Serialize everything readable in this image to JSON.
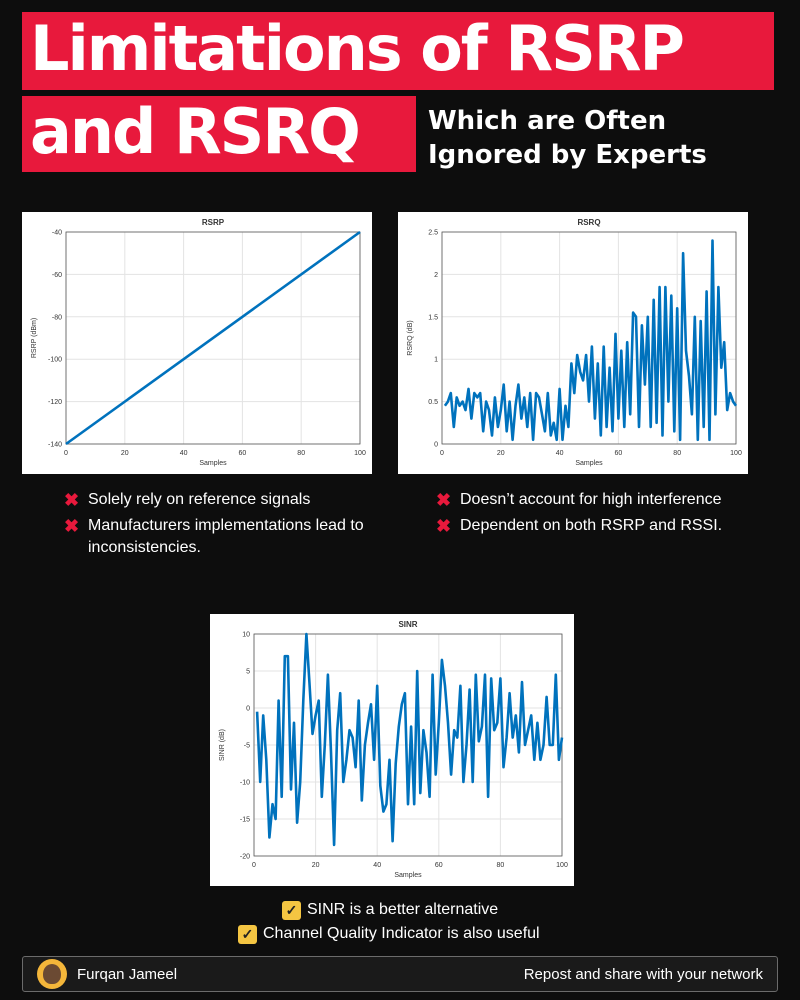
{
  "header": {
    "title_line1": "Limitations of RSRP",
    "title_line2": "and RSRQ",
    "subtitle": "Which are Often Ignored by Experts"
  },
  "bullets_left": [
    "Solely rely on reference signals",
    "Manufacturers implementations lead to inconsistencies."
  ],
  "bullets_right": [
    "Doesn’t account for high interference",
    "Dependent on both RSRP and RSSI."
  ],
  "checks": [
    "SINR is a better alternative",
    "Channel Quality Indicator is also useful"
  ],
  "footer": {
    "author": "Furqan Jameel",
    "cta": "Repost and share with your network"
  },
  "colors": {
    "accent": "#e8193c",
    "line": "#0072bd",
    "check": "#f4c542"
  },
  "icons": {
    "cross": "x-icon",
    "check": "checkbox-icon",
    "avatar": "avatar-icon"
  },
  "chart_data": [
    {
      "type": "line",
      "title": "RSRP",
      "xlabel": "Samples",
      "ylabel": "RSRP (dBm)",
      "xlim": [
        0,
        100
      ],
      "ylim": [
        -140,
        -40
      ],
      "xticks": [
        0,
        20,
        40,
        60,
        80,
        100
      ],
      "yticks": [
        -140,
        -120,
        -100,
        -80,
        -60,
        -40
      ],
      "grid": true,
      "x": [
        0,
        100
      ],
      "y": [
        -140,
        -40
      ]
    },
    {
      "type": "line",
      "title": "RSRQ",
      "xlabel": "Samples",
      "ylabel": "RSRQ (dB)",
      "xlim": [
        0,
        100
      ],
      "ylim": [
        0,
        2.5
      ],
      "xticks": [
        0,
        20,
        40,
        60,
        80,
        100
      ],
      "yticks": [
        0,
        0.5,
        1,
        1.5,
        2,
        2.5
      ],
      "grid": true,
      "x": [
        1,
        2,
        3,
        4,
        5,
        6,
        7,
        8,
        9,
        10,
        11,
        12,
        13,
        14,
        15,
        16,
        17,
        18,
        19,
        20,
        21,
        22,
        23,
        24,
        25,
        26,
        27,
        28,
        29,
        30,
        31,
        32,
        33,
        34,
        35,
        36,
        37,
        38,
        39,
        40,
        41,
        42,
        43,
        44,
        45,
        46,
        47,
        48,
        49,
        50,
        51,
        52,
        53,
        54,
        55,
        56,
        57,
        58,
        59,
        60,
        61,
        62,
        63,
        64,
        65,
        66,
        67,
        68,
        69,
        70,
        71,
        72,
        73,
        74,
        75,
        76,
        77,
        78,
        79,
        80,
        81,
        82,
        83,
        84,
        85,
        86,
        87,
        88,
        89,
        90,
        91,
        92,
        93,
        94,
        95,
        96,
        97,
        98,
        99,
        100
      ],
      "y": [
        0.45,
        0.5,
        0.6,
        0.2,
        0.55,
        0.45,
        0.5,
        0.4,
        0.65,
        0.3,
        0.6,
        0.55,
        0.6,
        0.15,
        0.5,
        0.4,
        0.1,
        0.55,
        0.2,
        0.4,
        0.7,
        0.15,
        0.5,
        0.05,
        0.45,
        0.7,
        0.3,
        0.55,
        0.2,
        0.6,
        0.05,
        0.6,
        0.55,
        0.35,
        0.15,
        0.6,
        0.1,
        0.25,
        0.05,
        0.65,
        0.05,
        0.45,
        0.2,
        0.95,
        0.6,
        1.05,
        0.85,
        0.75,
        1.05,
        0.5,
        1.15,
        0.3,
        0.95,
        0.1,
        1.15,
        0.2,
        0.9,
        0.15,
        1.3,
        0.3,
        1.1,
        0.2,
        1.2,
        0.35,
        1.55,
        1.5,
        0.2,
        1.4,
        0.7,
        1.5,
        0.2,
        1.7,
        0.25,
        1.85,
        0.1,
        1.85,
        0.5,
        1.75,
        0.15,
        1.6,
        0.05,
        2.25,
        1.1,
        0.8,
        0.35,
        1.5,
        0.05,
        1.45,
        0.2,
        1.8,
        0.05,
        2.4,
        0.35,
        1.85,
        0.9,
        1.2,
        0.4,
        0.6,
        0.5,
        0.45
      ]
    },
    {
      "type": "line",
      "title": "SINR",
      "xlabel": "Samples",
      "ylabel": "SINR (dB)",
      "xlim": [
        0,
        100
      ],
      "ylim": [
        -20,
        10
      ],
      "xticks": [
        0,
        20,
        40,
        60,
        80,
        100
      ],
      "yticks": [
        -20,
        -15,
        -10,
        -5,
        0,
        5,
        10
      ],
      "grid": true,
      "x": [
        1,
        2,
        3,
        4,
        5,
        6,
        7,
        8,
        9,
        10,
        11,
        12,
        13,
        14,
        15,
        16,
        17,
        18,
        19,
        20,
        21,
        22,
        23,
        24,
        25,
        26,
        27,
        28,
        29,
        30,
        31,
        32,
        33,
        34,
        35,
        36,
        37,
        38,
        39,
        40,
        41,
        42,
        43,
        44,
        45,
        46,
        47,
        48,
        49,
        50,
        51,
        52,
        53,
        54,
        55,
        56,
        57,
        58,
        59,
        60,
        61,
        62,
        63,
        64,
        65,
        66,
        67,
        68,
        69,
        70,
        71,
        72,
        73,
        74,
        75,
        76,
        77,
        78,
        79,
        80,
        81,
        82,
        83,
        84,
        85,
        86,
        87,
        88,
        89,
        90,
        91,
        92,
        93,
        94,
        95,
        96,
        97,
        98,
        99,
        100
      ],
      "y": [
        -0.5,
        -10,
        -1,
        -7,
        -17.5,
        -13,
        -15,
        1,
        -12,
        7,
        7,
        -11,
        -2,
        -15.5,
        -10,
        1,
        10,
        3.5,
        -3.5,
        -1,
        1,
        -12,
        -5,
        4.5,
        -6,
        -18.5,
        -3,
        2,
        -10,
        -7,
        -3,
        -4,
        -8,
        1,
        -12.5,
        -5,
        -2,
        0.5,
        -7,
        3,
        -10.5,
        -14,
        -13,
        -7,
        -18,
        -7.5,
        -2.5,
        0.5,
        2,
        -13,
        -2.5,
        -13,
        5,
        -11.5,
        -3,
        -6,
        -12,
        4.5,
        -9,
        -2,
        6.5,
        3,
        -2,
        -9,
        -3,
        -4,
        3,
        -10,
        -5,
        2.5,
        -10,
        4.5,
        -4.5,
        -2.5,
        4.5,
        -12,
        4,
        -3,
        -2,
        4,
        -8,
        -4,
        2,
        -4,
        -1,
        -6,
        3.5,
        -5,
        -3,
        -1,
        -7,
        -2,
        -7,
        -5,
        1.5,
        -5,
        -5,
        4.5,
        -7,
        -4
      ]
    }
  ]
}
